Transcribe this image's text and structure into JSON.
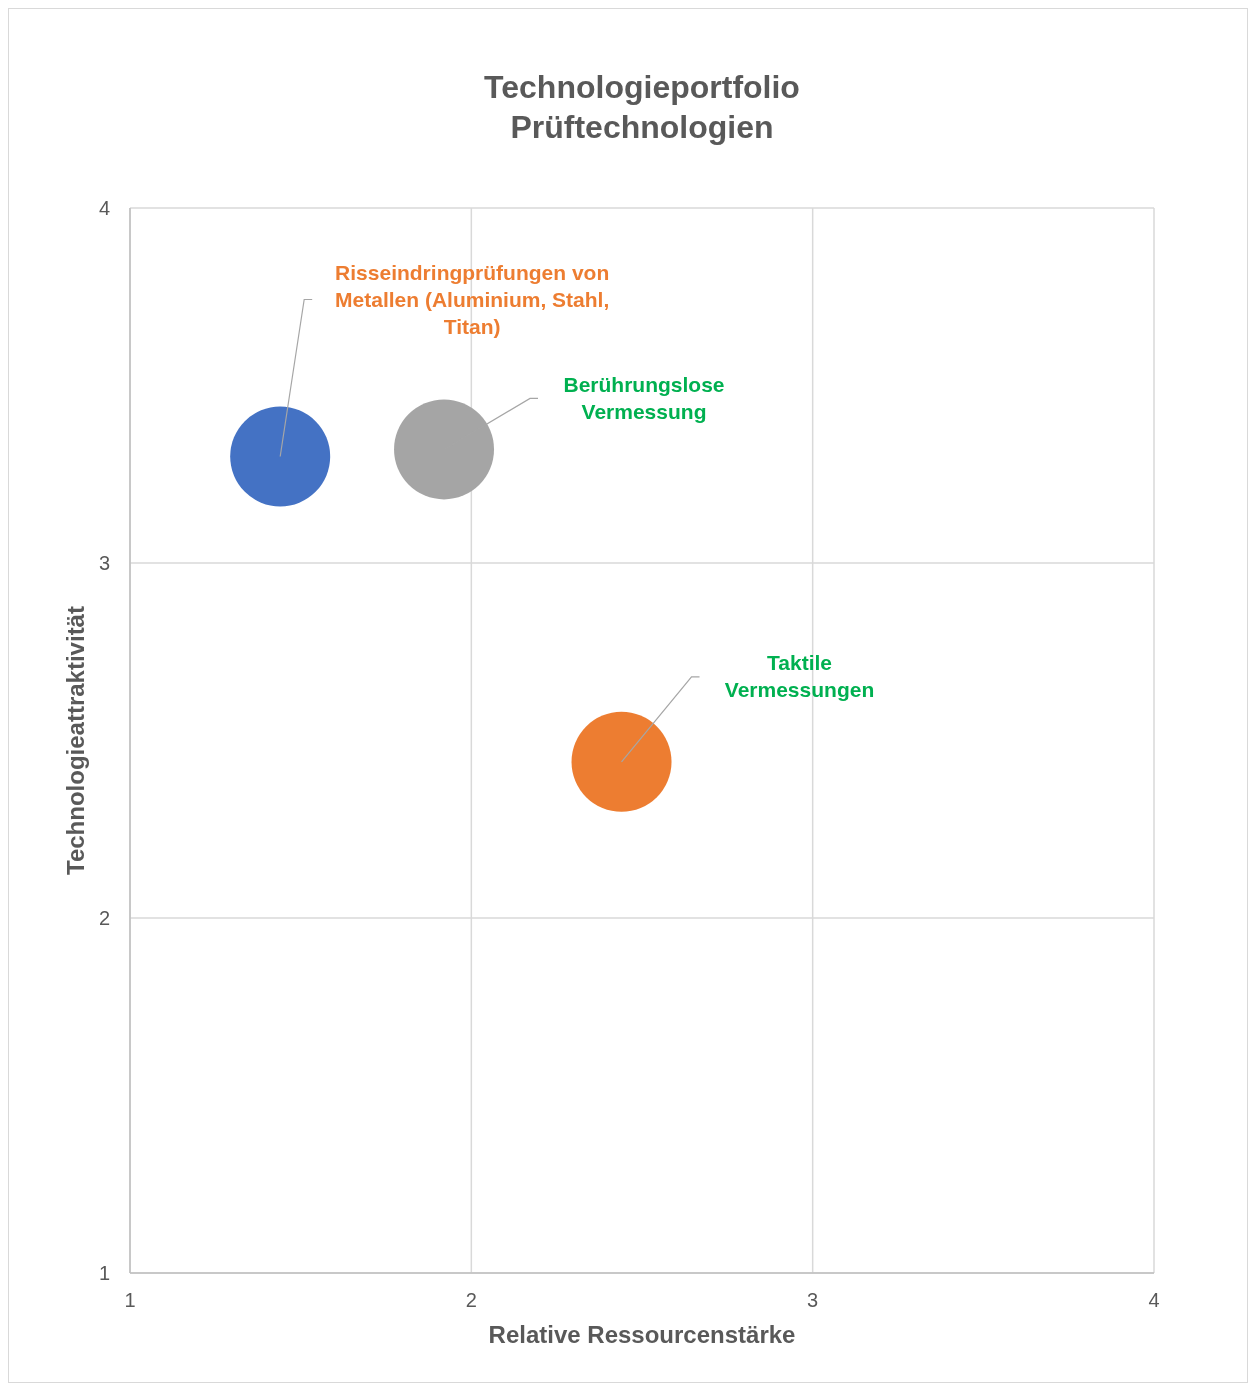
{
  "chart_data": {
    "type": "bubble",
    "title": "Technologieportfolio",
    "subtitle": "Prüftechnologien",
    "xlabel": "Relative Ressourcenstärke",
    "ylabel": "Technologieattraktivität",
    "xlim": [
      1,
      4
    ],
    "xticks": [
      1,
      2,
      3,
      4
    ],
    "ylim": [
      1,
      4
    ],
    "yticks": [
      1,
      2,
      3,
      4
    ],
    "grid": true,
    "series": [
      {
        "color": "#4472c4",
        "x": [
          1.44
        ],
        "values": [
          3.3
        ],
        "sizes": [
          1
        ]
      },
      {
        "color": "#a5a5a5",
        "x": [
          1.92
        ],
        "values": [
          3.32
        ],
        "sizes": [
          1
        ]
      },
      {
        "color": "#ed7d31",
        "x": [
          2.44
        ],
        "values": [
          2.44
        ],
        "sizes": [
          1
        ]
      }
    ],
    "annotations": [
      {
        "text": "Risseindringprüfungen von Metallen (Aluminium, Stahl, Titan)",
        "x": 1.44,
        "y": 3.3
      },
      {
        "text": "Berührungslose Vermessung",
        "x": 1.92,
        "y": 3.32
      },
      {
        "text": "Taktile Vermessungen",
        "x": 2.44,
        "y": 2.44
      }
    ]
  }
}
